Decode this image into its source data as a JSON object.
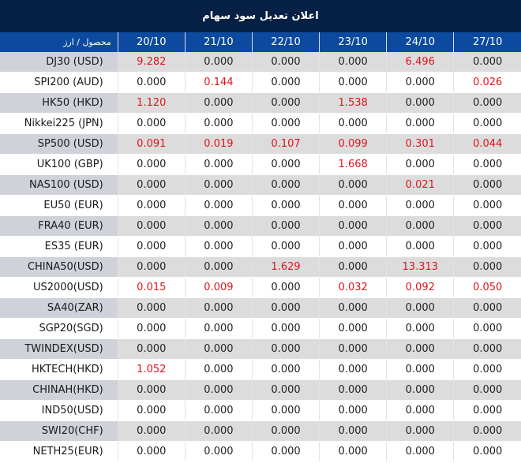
{
  "title": "اعلان تعدیل سود سهام",
  "colors": {
    "title_bg": "#061f45",
    "header_bg": "#0b4a9e",
    "shaded_row": "#dcdcdc",
    "shaded_name_cell": "#cfd3d9",
    "highlight_value": "#e0141e",
    "normal_value": "#222222"
  },
  "header": {
    "product_label": "محصول / ارز",
    "dates": [
      "20/10",
      "21/10",
      "22/10",
      "23/10",
      "24/10",
      "27/10"
    ]
  },
  "rows": [
    {
      "name": "DJ30 (USD)",
      "values": [
        "9.282",
        "0.000",
        "0.000",
        "0.000",
        "6.496",
        "0.000"
      ]
    },
    {
      "name": "SPI200 (AUD)",
      "values": [
        "0.000",
        "0.144",
        "0.000",
        "0.000",
        "0.000",
        "0.026"
      ]
    },
    {
      "name": "HK50 (HKD)",
      "values": [
        "1.120",
        "0.000",
        "0.000",
        "1.538",
        "0.000",
        "0.000"
      ]
    },
    {
      "name": "Nikkei225 (JPN)",
      "values": [
        "0.000",
        "0.000",
        "0.000",
        "0.000",
        "0.000",
        "0.000"
      ]
    },
    {
      "name": "SP500 (USD)",
      "values": [
        "0.091",
        "0.019",
        "0.107",
        "0.099",
        "0.301",
        "0.044"
      ]
    },
    {
      "name": "UK100 (GBP)",
      "values": [
        "0.000",
        "0.000",
        "0.000",
        "1.668",
        "0.000",
        "0.000"
      ]
    },
    {
      "name": "NAS100 (USD)",
      "values": [
        "0.000",
        "0.000",
        "0.000",
        "0.000",
        "0.021",
        "0.000"
      ]
    },
    {
      "name": "EU50 (EUR)",
      "values": [
        "0.000",
        "0.000",
        "0.000",
        "0.000",
        "0.000",
        "0.000"
      ]
    },
    {
      "name": "FRA40 (EUR)",
      "values": [
        "0.000",
        "0.000",
        "0.000",
        "0.000",
        "0.000",
        "0.000"
      ]
    },
    {
      "name": "ES35 (EUR)",
      "values": [
        "0.000",
        "0.000",
        "0.000",
        "0.000",
        "0.000",
        "0.000"
      ]
    },
    {
      "name": "CHINA50(USD)",
      "values": [
        "0.000",
        "0.000",
        "1.629",
        "0.000",
        "13.313",
        "0.000"
      ]
    },
    {
      "name": "US2000(USD)",
      "values": [
        "0.015",
        "0.009",
        "0.000",
        "0.032",
        "0.092",
        "0.050"
      ]
    },
    {
      "name": "SA40(ZAR)",
      "values": [
        "0.000",
        "0.000",
        "0.000",
        "0.000",
        "0.000",
        "0.000"
      ]
    },
    {
      "name": "SGP20(SGD)",
      "values": [
        "0.000",
        "0.000",
        "0.000",
        "0.000",
        "0.000",
        "0.000"
      ]
    },
    {
      "name": "TWINDEX(USD)",
      "values": [
        "0.000",
        "0.000",
        "0.000",
        "0.000",
        "0.000",
        "0.000"
      ]
    },
    {
      "name": "HKTECH(HKD)",
      "values": [
        "1.052",
        "0.000",
        "0.000",
        "0.000",
        "0.000",
        "0.000"
      ]
    },
    {
      "name": "CHINAH(HKD)",
      "values": [
        "0.000",
        "0.000",
        "0.000",
        "0.000",
        "0.000",
        "0.000"
      ]
    },
    {
      "name": "IND50(USD)",
      "values": [
        "0.000",
        "0.000",
        "0.000",
        "0.000",
        "0.000",
        "0.000"
      ]
    },
    {
      "name": "SWI20(CHF)",
      "values": [
        "0.000",
        "0.000",
        "0.000",
        "0.000",
        "0.000",
        "0.000"
      ]
    },
    {
      "name": "NETH25(EUR)",
      "values": [
        "0.000",
        "0.000",
        "0.000",
        "0.000",
        "0.000",
        "0.000"
      ]
    }
  ]
}
